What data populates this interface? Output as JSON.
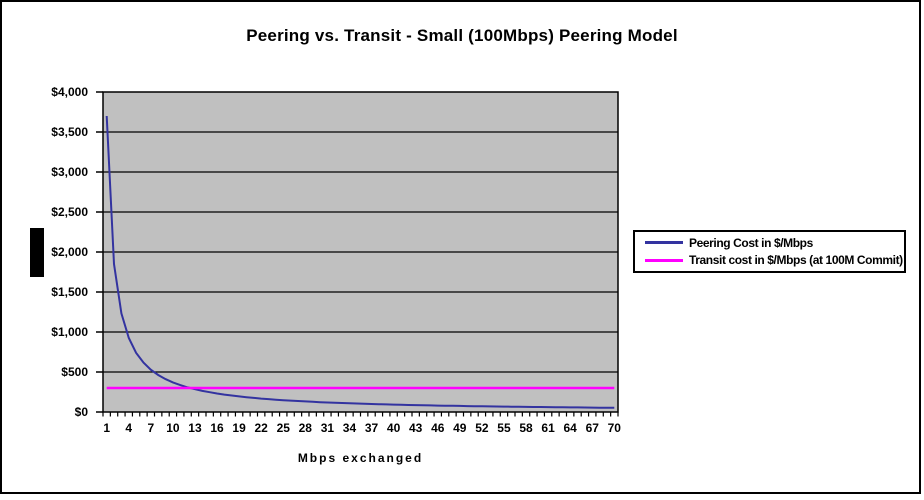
{
  "page": {
    "background_color": "#ffffff",
    "border_color": "#000000"
  },
  "chart_data": {
    "type": "line",
    "title": "Peering vs. Transit - Small (100Mbps) Peering Model",
    "xlabel": "Mbps exchanged",
    "ylabel": "",
    "plot_background": "#c0c0c0",
    "grid": "horizontal",
    "gridline_color": "#000000",
    "legend_position": "right",
    "ylim": [
      0,
      4000
    ],
    "y_tick_step": 500,
    "y_tick_labels": [
      "$4,000",
      "$3,500",
      "$3,000",
      "$2,500",
      "$2,000",
      "$1,500",
      "$1,000",
      "$500",
      "$0"
    ],
    "x_tick_labels": [
      1,
      4,
      7,
      10,
      13,
      16,
      19,
      22,
      25,
      28,
      31,
      34,
      37,
      40,
      43,
      46,
      49,
      52,
      55,
      58,
      61,
      64,
      67,
      70
    ],
    "x": [
      1,
      2,
      3,
      4,
      5,
      6,
      7,
      8,
      9,
      10,
      11,
      12,
      13,
      14,
      15,
      16,
      17,
      18,
      19,
      20,
      21,
      22,
      23,
      24,
      25,
      26,
      27,
      28,
      29,
      30,
      31,
      32,
      33,
      34,
      35,
      36,
      37,
      38,
      39,
      40,
      41,
      42,
      43,
      44,
      45,
      46,
      47,
      48,
      49,
      50,
      51,
      52,
      53,
      54,
      55,
      56,
      57,
      58,
      59,
      60,
      61,
      62,
      63,
      64,
      65,
      66,
      67,
      68,
      69,
      70
    ],
    "series": [
      {
        "name": "Peering Cost in $/Mbps",
        "color": "#3333a0",
        "values": [
          3700,
          1850,
          1233,
          925,
          740,
          617,
          529,
          463,
          411,
          370,
          336,
          308,
          285,
          264,
          247,
          231,
          218,
          206,
          195,
          185,
          176,
          168,
          161,
          154,
          148,
          142,
          137,
          132,
          128,
          123,
          119,
          116,
          112,
          109,
          106,
          103,
          100,
          97,
          95,
          93,
          90,
          88,
          86,
          84,
          82,
          80,
          79,
          77,
          76,
          74,
          73,
          71,
          70,
          69,
          67,
          66,
          65,
          64,
          63,
          62,
          61,
          60,
          59,
          58,
          57,
          56,
          55,
          54,
          54,
          53
        ]
      },
      {
        "name": "Transit cost in $/Mbps (at 100M Commit)",
        "color": "#ff00ff",
        "constant_value": 300
      }
    ]
  }
}
